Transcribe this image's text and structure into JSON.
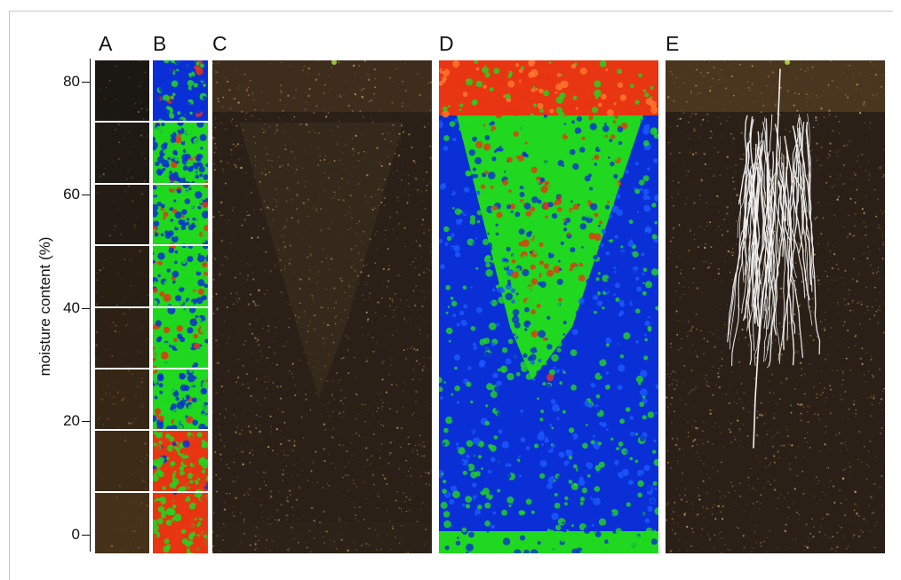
{
  "figure": {
    "panel_labels": [
      "A",
      "B",
      "C",
      "D",
      "E"
    ],
    "y_axis": {
      "title": "moisture content (%)",
      "ticks": [
        "80",
        "60",
        "40",
        "20",
        "0"
      ]
    }
  },
  "chart_data": {
    "type": "heatmap",
    "ylabel": "moisture content (%)",
    "yticks": [
      0,
      20,
      40,
      60,
      80
    ],
    "ylim": [
      0,
      84
    ],
    "calibration_strips": 8,
    "colors": {
      "soil_dark": "#1c150d",
      "soil_light": "#5a3f22",
      "map_blue": "#0a2fd6",
      "map_green": "#1fd81f",
      "map_red": "#e83512",
      "root_white": "#f2f2f2"
    }
  }
}
